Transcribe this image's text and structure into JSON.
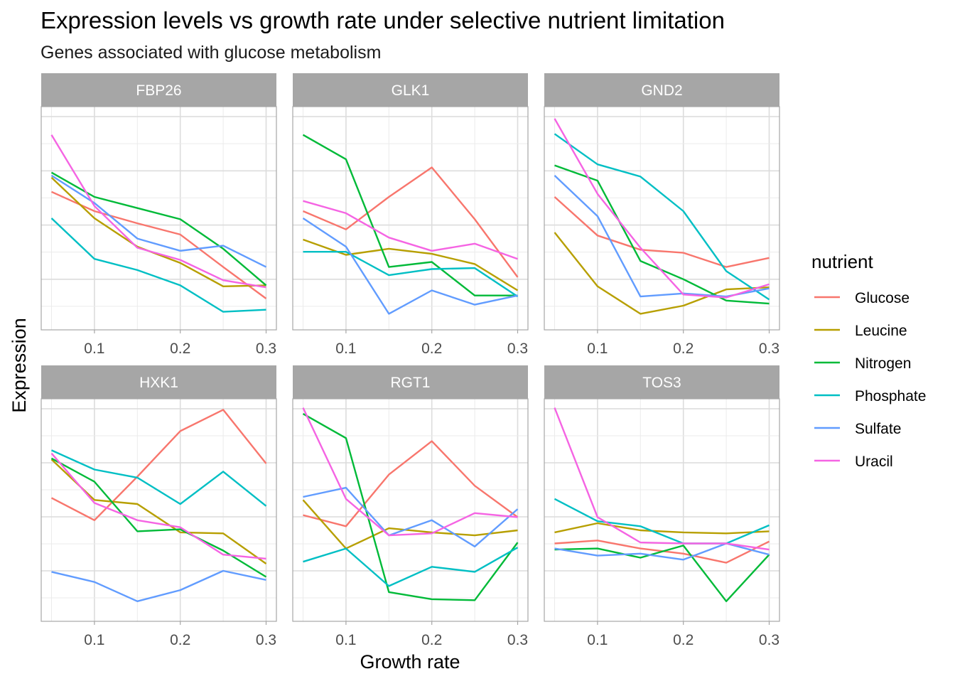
{
  "chart_data": {
    "type": "line",
    "title": "Expression levels vs growth rate under selective nutrient limitation",
    "subtitle": "Genes associated with glucose metabolism",
    "xlabel": "Growth rate",
    "ylabel": "Expression",
    "xlim": [
      0.038,
      0.312
    ],
    "x_ticks": [
      0.1,
      0.2,
      0.3
    ],
    "x_tick_labels": [
      "0.1",
      "0.2",
      "0.3"
    ],
    "x": [
      0.05,
      0.1,
      0.15,
      0.2,
      0.25,
      0.3
    ],
    "facet_scales": "free_y",
    "grid": true,
    "legend": {
      "title": "nutrient",
      "position": "right",
      "entries": [
        "Glucose",
        "Leucine",
        "Nitrogen",
        "Phosphate",
        "Sulfate",
        "Uracil"
      ]
    },
    "colors": {
      "Glucose": "#F8766D",
      "Leucine": "#B79F00",
      "Nitrogen": "#00BA38",
      "Phosphate": "#00BFC4",
      "Sulfate": "#619CFF",
      "Uracil": "#F564E3"
    },
    "panels": [
      {
        "name": "FBP26",
        "ylim": [
          0,
          10
        ],
        "series": [
          {
            "name": "Glucose",
            "values": [
              6.3,
              5.35,
              4.75,
              4.2,
              2.6,
              1.05
            ]
          },
          {
            "name": "Leucine",
            "values": [
              7.0,
              5.0,
              3.6,
              2.8,
              1.65,
              1.7
            ]
          },
          {
            "name": "Nitrogen",
            "values": [
              7.25,
              6.05,
              5.5,
              4.95,
              3.5,
              1.7
            ]
          },
          {
            "name": "Phosphate",
            "values": [
              5.0,
              3.0,
              2.45,
              1.7,
              0.4,
              0.5
            ]
          },
          {
            "name": "Sulfate",
            "values": [
              7.1,
              5.75,
              4.0,
              3.4,
              3.65,
              2.6
            ]
          },
          {
            "name": "Uracil",
            "values": [
              9.1,
              5.6,
              3.55,
              2.95,
              1.95,
              1.6
            ]
          }
        ]
      },
      {
        "name": "GLK1",
        "ylim": [
          0,
          10
        ],
        "series": [
          {
            "name": "Glucose",
            "values": [
              5.35,
              4.45,
              6.05,
              7.5,
              4.95,
              2.1
            ]
          },
          {
            "name": "Leucine",
            "values": [
              3.95,
              3.2,
              3.5,
              3.25,
              2.75,
              1.45
            ]
          },
          {
            "name": "Nitrogen",
            "values": [
              9.1,
              7.9,
              2.6,
              2.85,
              1.2,
              1.2
            ]
          },
          {
            "name": "Phosphate",
            "values": [
              3.35,
              3.35,
              2.2,
              2.5,
              2.55,
              1.15
            ]
          },
          {
            "name": "Sulfate",
            "values": [
              5.0,
              3.6,
              0.3,
              1.45,
              0.75,
              1.2
            ]
          },
          {
            "name": "Uracil",
            "values": [
              5.85,
              5.25,
              4.05,
              3.4,
              3.75,
              3.0
            ]
          }
        ]
      },
      {
        "name": "GND2",
        "ylim": [
          0,
          10
        ],
        "series": [
          {
            "name": "Glucose",
            "values": [
              6.05,
              4.15,
              3.45,
              3.3,
              2.6,
              3.05
            ]
          },
          {
            "name": "Leucine",
            "values": [
              4.3,
              1.65,
              0.3,
              0.7,
              1.5,
              1.6
            ]
          },
          {
            "name": "Nitrogen",
            "values": [
              7.6,
              6.85,
              2.9,
              2.0,
              0.95,
              0.8
            ]
          },
          {
            "name": "Phosphate",
            "values": [
              9.15,
              7.65,
              7.05,
              5.35,
              2.4,
              1.0
            ]
          },
          {
            "name": "Sulfate",
            "values": [
              7.1,
              5.1,
              1.15,
              1.3,
              1.15,
              1.55
            ]
          },
          {
            "name": "Uracil",
            "values": [
              9.9,
              6.2,
              3.55,
              1.25,
              1.1,
              1.75
            ]
          }
        ]
      },
      {
        "name": "HXK1",
        "ylim": [
          0,
          10
        ],
        "series": [
          {
            "name": "Glucose",
            "values": [
              5.6,
              4.5,
              6.65,
              8.9,
              9.95,
              7.3
            ]
          },
          {
            "name": "Leucine",
            "values": [
              7.5,
              5.5,
              5.3,
              3.9,
              3.85,
              2.35
            ]
          },
          {
            "name": "Nitrogen",
            "values": [
              7.55,
              6.4,
              3.95,
              4.05,
              3.0,
              1.7
            ]
          },
          {
            "name": "Phosphate",
            "values": [
              7.95,
              7.0,
              6.6,
              5.3,
              6.9,
              5.2
            ]
          },
          {
            "name": "Sulfate",
            "values": [
              1.95,
              1.45,
              0.5,
              1.05,
              2.0,
              1.55
            ]
          },
          {
            "name": "Uracil",
            "values": [
              7.8,
              5.35,
              4.5,
              4.15,
              2.8,
              2.6
            ]
          }
        ]
      },
      {
        "name": "RGT1",
        "ylim": [
          0,
          10
        ],
        "series": [
          {
            "name": "Glucose",
            "values": [
              4.75,
              4.2,
              6.75,
              8.4,
              6.2,
              4.65
            ]
          },
          {
            "name": "Leucine",
            "values": [
              5.5,
              3.1,
              4.1,
              3.9,
              3.75,
              4.0
            ]
          },
          {
            "name": "Nitrogen",
            "values": [
              9.75,
              8.55,
              0.95,
              0.6,
              0.55,
              3.4
            ]
          },
          {
            "name": "Phosphate",
            "values": [
              2.45,
              3.1,
              1.25,
              2.2,
              1.95,
              3.15
            ]
          },
          {
            "name": "Sulfate",
            "values": [
              5.65,
              6.1,
              3.75,
              4.5,
              3.2,
              5.05
            ]
          },
          {
            "name": "Uracil",
            "values": [
              10.05,
              5.55,
              3.75,
              3.85,
              4.85,
              4.65
            ]
          }
        ]
      },
      {
        "name": "TOS3",
        "ylim": [
          0,
          10
        ],
        "series": [
          {
            "name": "Glucose",
            "values": [
              3.35,
              3.5,
              3.1,
              2.85,
              2.4,
              3.45
            ]
          },
          {
            "name": "Leucine",
            "values": [
              3.9,
              4.35,
              4.0,
              3.9,
              3.85,
              3.95
            ]
          },
          {
            "name": "Nitrogen",
            "values": [
              3.05,
              3.1,
              2.65,
              3.25,
              0.5,
              2.8
            ]
          },
          {
            "name": "Phosphate",
            "values": [
              5.55,
              4.45,
              4.2,
              3.35,
              3.35,
              4.25
            ]
          },
          {
            "name": "Sulfate",
            "values": [
              3.1,
              2.75,
              2.85,
              2.55,
              3.35,
              2.8
            ]
          },
          {
            "name": "Uracil",
            "values": [
              10.05,
              4.65,
              3.4,
              3.35,
              3.35,
              3.05
            ]
          }
        ]
      }
    ]
  }
}
